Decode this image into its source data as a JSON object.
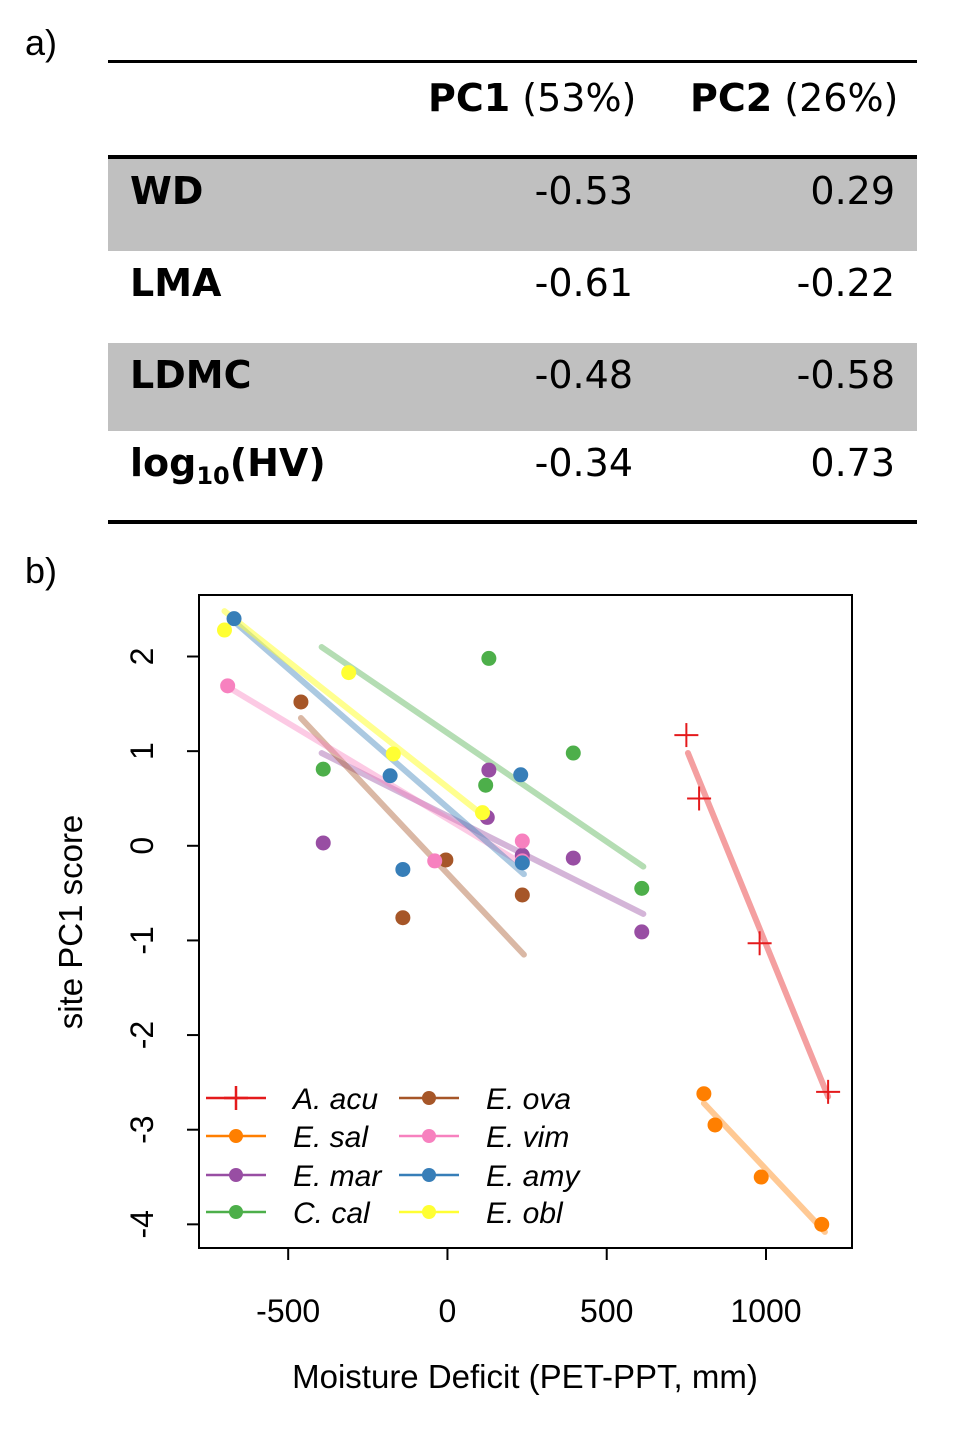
{
  "panel_labels": {
    "a": "a)",
    "b": "b)"
  },
  "table": {
    "headers": [
      {
        "bold": "PC1",
        "rest": " (53%)"
      },
      {
        "bold": "PC2",
        "rest": " (26%)"
      }
    ],
    "rows": [
      {
        "name": "WD",
        "pc1": "-0.53",
        "pc2": "0.29",
        "shaded": true
      },
      {
        "name": "LMA",
        "pc1": "-0.61",
        "pc2": "-0.22",
        "shaded": false
      },
      {
        "name": "LDMC",
        "pc1": "-0.48",
        "pc2": "-0.58",
        "shaded": true
      },
      {
        "name_main": "log",
        "name_sub": "10",
        "name_tail": "(HV)",
        "pc1": "-0.34",
        "pc2": "0.73",
        "shaded": false
      }
    ]
  },
  "chart_data": {
    "type": "scatter",
    "xlabel": "Moisture Deficit (PET-PPT, mm)",
    "ylabel": "site PC1 score",
    "xlim": [
      -780,
      1270
    ],
    "ylim": [
      -4.25,
      2.65
    ],
    "xticks": [
      -500,
      0,
      500,
      1000
    ],
    "xtick_labels": [
      "-500",
      "0",
      "500",
      "1000"
    ],
    "yticks": [
      -4,
      -3,
      -2,
      -1,
      0,
      1,
      2
    ],
    "ytick_labels": [
      "-4",
      "-3",
      "-2",
      "-1",
      "0",
      "1",
      "2"
    ],
    "grid": false,
    "legend_position": "bottom-left",
    "series": [
      {
        "name": "A. acu",
        "color": "#e41a1c",
        "marker": "plus",
        "points": [
          [
            750,
            1.17
          ],
          [
            790,
            0.5
          ],
          [
            980,
            -1.03
          ],
          [
            1195,
            -2.6
          ]
        ],
        "fit": [
          [
            755,
            0.98
          ],
          [
            1195,
            -2.65
          ]
        ]
      },
      {
        "name": "E. sal",
        "color": "#ff7f00",
        "marker": "dot",
        "points": [
          [
            805,
            -2.62
          ],
          [
            840,
            -2.95
          ],
          [
            985,
            -3.5
          ],
          [
            1175,
            -4.0
          ]
        ],
        "fit": [
          [
            805,
            -2.72
          ],
          [
            1185,
            -4.08
          ]
        ]
      },
      {
        "name": "E. mar",
        "color": "#984ea3",
        "marker": "dot",
        "points": [
          [
            -390,
            0.03
          ],
          [
            125,
            0.3
          ],
          [
            130,
            0.8
          ],
          [
            395,
            -0.13
          ],
          [
            610,
            -0.91
          ],
          [
            235,
            -0.1
          ]
        ],
        "fit": [
          [
            -395,
            0.98
          ],
          [
            615,
            -0.72
          ]
        ]
      },
      {
        "name": "C. cal",
        "color": "#4daf4a",
        "marker": "dot",
        "points": [
          [
            -390,
            0.81
          ],
          [
            130,
            1.98
          ],
          [
            120,
            0.64
          ],
          [
            395,
            0.98
          ],
          [
            610,
            -0.45
          ]
        ],
        "fit": [
          [
            -395,
            2.1
          ],
          [
            615,
            -0.22
          ]
        ]
      },
      {
        "name": "E. ova",
        "color": "#a65628",
        "marker": "dot",
        "points": [
          [
            -460,
            1.52
          ],
          [
            -140,
            -0.76
          ],
          [
            -5,
            -0.15
          ],
          [
            235,
            -0.52
          ]
        ],
        "fit": [
          [
            -460,
            1.35
          ],
          [
            240,
            -1.15
          ]
        ]
      },
      {
        "name": "E. vim",
        "color": "#f781bf",
        "marker": "dot",
        "points": [
          [
            -690,
            1.69
          ],
          [
            -40,
            -0.16
          ],
          [
            235,
            0.05
          ],
          [
            235,
            -0.16
          ]
        ],
        "fit": [
          [
            -690,
            1.68
          ],
          [
            240,
            -0.2
          ]
        ]
      },
      {
        "name": "E. amy",
        "color": "#377eb8",
        "marker": "dot",
        "points": [
          [
            -670,
            2.4
          ],
          [
            -180,
            0.74
          ],
          [
            -140,
            -0.25
          ],
          [
            230,
            0.75
          ],
          [
            235,
            -0.18
          ]
        ],
        "fit": [
          [
            -680,
            2.4
          ],
          [
            240,
            -0.3
          ]
        ]
      },
      {
        "name": "E. obl",
        "color": "#ffff33",
        "marker": "dot",
        "points": [
          [
            -700,
            2.28
          ],
          [
            -310,
            1.83
          ],
          [
            -170,
            0.97
          ],
          [
            110,
            0.35
          ]
        ],
        "fit": [
          [
            -700,
            2.48
          ],
          [
            120,
            0.3
          ]
        ]
      }
    ]
  }
}
